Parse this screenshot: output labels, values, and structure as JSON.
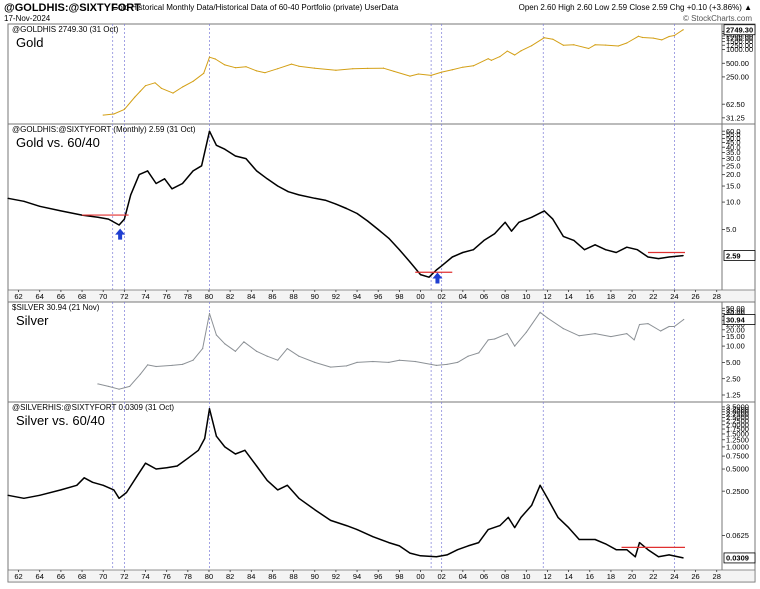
{
  "header": {
    "symbol": "@GOLDHIS:@SIXTYFORT",
    "description": "Gold Historical Monthly Data/Historical Data of 60-40 Portfolio (private) UserData",
    "date": "17-Nov-2024",
    "quote": "Open 2.60  High 2.60  Low 2.59  Close 2.59  Chg +0.10 (+3.86%) ▲",
    "brand": "© StockCharts.com"
  },
  "colors": {
    "gold": "#d4a017",
    "black": "#000000",
    "silver": "#8c9196",
    "guide": "#7b7bd8",
    "resistance": "#e03030",
    "arrow": "#1f3fd1",
    "grid": "#9a9a9a"
  },
  "chart_data": [
    {
      "type": "line",
      "title": "Gold",
      "legend": "@GOLDHIS 2749.30 (31 Oct)",
      "scale": "log",
      "color": "gold",
      "last_label": "2749.30",
      "ticks": [
        "31.25",
        "62.50",
        "250.00",
        "500.00",
        "1000.00",
        "1250.00",
        "1500.00",
        "1750.00",
        "2000.00",
        "2250.00",
        "2500.00"
      ],
      "tick_values": [
        31.25,
        62.5,
        250,
        500,
        1000,
        1250,
        1500,
        1750,
        2000,
        2250,
        2500
      ],
      "ylim": [
        28,
        3000
      ],
      "x": [
        1970.0,
        1971.0,
        1972.0,
        1973.0,
        1973.5,
        1974.0,
        1974.9,
        1975.5,
        1976.6,
        1977.5,
        1978.5,
        1979.5,
        1980.05,
        1980.6,
        1981.5,
        1982.5,
        1983.5,
        1984.5,
        1985.3,
        1986.5,
        1987.8,
        1988.5,
        1990.0,
        1992.0,
        1993.6,
        1995.0,
        1996.5,
        1997.5,
        1999.0,
        1999.8,
        2001.0,
        2002.0,
        2003.0,
        2004.0,
        2005.0,
        2006.4,
        2006.7,
        2007.5,
        2008.2,
        2008.9,
        2009.5,
        2010.5,
        2011.7,
        2012.5,
        2013.5,
        2014.5,
        2015.9,
        2016.5,
        2017.5,
        2018.7,
        2019.5,
        2020.6,
        2021.0,
        2022.0,
        2022.8,
        2023.5,
        2024.0,
        2024.83
      ],
      "values": [
        36,
        38,
        48,
        90,
        120,
        160,
        185,
        140,
        110,
        150,
        200,
        300,
        680,
        620,
        460,
        400,
        420,
        340,
        310,
        380,
        480,
        430,
        390,
        350,
        380,
        385,
        390,
        330,
        260,
        290,
        270,
        320,
        360,
        410,
        440,
        630,
        580,
        700,
        930,
        760,
        940,
        1220,
        1830,
        1700,
        1250,
        1280,
        1060,
        1280,
        1260,
        1200,
        1400,
        1970,
        1850,
        1800,
        1640,
        1950,
        2050,
        2749.3
      ]
    },
    {
      "type": "line",
      "title": "Gold vs. 60/40",
      "legend": "@GOLDHIS:@SIXTYFORT (Monthly) 2.59 (31 Oct)",
      "scale": "log",
      "color": "black",
      "last_label": "2.59",
      "ticks": [
        "5.0",
        "10.0",
        "15.0",
        "20.0",
        "25.0",
        "30.0",
        "35.0",
        "40.0",
        "45.0",
        "50.0",
        "55.0",
        "60.0"
      ],
      "tick_values": [
        5,
        10,
        15,
        20,
        25,
        30,
        35,
        40,
        45,
        50,
        55,
        60
      ],
      "ylim": [
        1.2,
        65
      ],
      "x": [
        1961.0,
        1962.5,
        1964.0,
        1966.0,
        1968.0,
        1969.5,
        1970.5,
        1971.5,
        1972.0,
        1972.6,
        1973.4,
        1974.2,
        1975.0,
        1975.8,
        1976.5,
        1977.5,
        1978.5,
        1979.3,
        1980.05,
        1980.7,
        1981.5,
        1982.5,
        1983.5,
        1984.5,
        1985.5,
        1986.5,
        1987.5,
        1988.5,
        1990.0,
        1991.0,
        1992.0,
        1993.0,
        1994.0,
        1995.0,
        1996.0,
        1997.0,
        1998.0,
        1999.0,
        2000.0,
        2000.8,
        2001.5,
        2002.0,
        2003.0,
        2004.0,
        2005.0,
        2006.0,
        2007.0,
        2008.0,
        2008.6,
        2009.3,
        2010.5,
        2011.7,
        2012.5,
        2013.5,
        2014.5,
        2015.5,
        2016.5,
        2017.5,
        2018.5,
        2019.5,
        2020.5,
        2021.5,
        2022.5,
        2023.5,
        2024.83
      ],
      "values": [
        11,
        10.2,
        9.0,
        8.0,
        7.2,
        6.8,
        6.5,
        5.6,
        6.5,
        12,
        20,
        22,
        16,
        18,
        14,
        16,
        22,
        25,
        60,
        42,
        38,
        32,
        30,
        22,
        18,
        15,
        13,
        12,
        11,
        10.5,
        9.5,
        8.5,
        7.5,
        6.2,
        5.0,
        4.0,
        3.0,
        2.2,
        1.6,
        1.5,
        1.8,
        2.0,
        2.5,
        2.8,
        3.0,
        3.8,
        4.5,
        6.0,
        4.8,
        6.0,
        6.8,
        8.0,
        6.5,
        4.2,
        3.8,
        3.0,
        3.4,
        3.0,
        2.8,
        3.2,
        3.0,
        2.5,
        2.4,
        2.5,
        2.59
      ],
      "markers": [
        {
          "type": "resistance",
          "x1": 1968.0,
          "x2": 1972.4,
          "y": 7.2
        },
        {
          "type": "resistance",
          "x1": 1999.5,
          "x2": 2003.0,
          "y": 1.7
        },
        {
          "type": "resistance",
          "x1": 2021.5,
          "x2": 2025.0,
          "y": 2.8
        },
        {
          "type": "arrow-up",
          "x": 1971.6,
          "y": 4.4
        },
        {
          "type": "arrow-up",
          "x": 2001.6,
          "y": 1.45
        }
      ]
    },
    {
      "type": "line",
      "title": "Silver",
      "legend": "$SILVER 30.94 (21 Nov)",
      "scale": "log",
      "color": "silver",
      "last_label": "30.94",
      "ticks": [
        "1.25",
        "2.50",
        "5.00",
        "10.00",
        "15.00",
        "20.00",
        "25.00",
        "30.00",
        "35.00",
        "40.00",
        "45.00",
        "50.00"
      ],
      "tick_values": [
        1.25,
        2.5,
        5,
        10,
        15,
        20,
        25,
        30,
        35,
        40,
        45,
        50
      ],
      "ylim": [
        1.1,
        55
      ],
      "x": [
        1969.5,
        1970.5,
        1971.5,
        1972.5,
        1973.5,
        1974.2,
        1975.0,
        1976.5,
        1977.5,
        1978.5,
        1979.4,
        1980.05,
        1980.7,
        1981.5,
        1982.5,
        1983.3,
        1984.5,
        1985.5,
        1986.5,
        1987.4,
        1988.5,
        1990.0,
        1991.5,
        1993.0,
        1994.0,
        1995.5,
        1997.0,
        1998.0,
        1999.5,
        2001.5,
        2002.5,
        2003.5,
        2004.5,
        2005.5,
        2006.4,
        2007.0,
        2008.2,
        2008.9,
        2010.0,
        2011.3,
        2012.0,
        2013.5,
        2015.0,
        2016.5,
        2018.0,
        2019.5,
        2020.2,
        2020.7,
        2021.5,
        2022.7,
        2023.5,
        2024.0,
        2024.88
      ],
      "values": [
        2.0,
        1.8,
        1.6,
        1.8,
        3.0,
        4.5,
        4.2,
        4.4,
        4.6,
        5.5,
        9.0,
        40,
        16,
        11,
        8,
        12,
        8,
        6.5,
        5.5,
        9.0,
        6.5,
        5.0,
        4.1,
        4.3,
        5.0,
        5.2,
        5.0,
        5.5,
        5.2,
        4.4,
        4.6,
        5.0,
        6.5,
        7.5,
        13,
        13.5,
        17,
        10,
        18,
        42,
        33,
        21,
        15.5,
        17,
        15,
        17,
        13,
        25,
        26,
        19,
        23,
        23,
        30.94
      ]
    },
    {
      "type": "line",
      "title": "Silver vs. 60/40",
      "legend": "@SILVERHIS:@SIXTYFORT 0.0309 (31 Oct)",
      "scale": "log",
      "color": "black",
      "last_label": "0.0309",
      "ticks": [
        "0.0625",
        "0.2500",
        "0.5000",
        "0.7500",
        "1.0000",
        "1.2500",
        "1.5000",
        "1.7500",
        "2.0000",
        "2.2500",
        "2.5000",
        "2.7500",
        "3.0000",
        "3.2500",
        "3.5000"
      ],
      "tick_values": [
        0.0625,
        0.25,
        0.5,
        0.75,
        1.0,
        1.25,
        1.5,
        1.75,
        2.0,
        2.25,
        2.5,
        2.75,
        3.0,
        3.25,
        3.5
      ],
      "ylim": [
        0.024,
        3.6
      ],
      "x": [
        1961.0,
        1962.5,
        1964.0,
        1966.0,
        1967.5,
        1968.2,
        1969.0,
        1970.0,
        1971.0,
        1971.5,
        1972.2,
        1973.2,
        1974.0,
        1975.0,
        1976.0,
        1977.0,
        1978.0,
        1979.0,
        1979.6,
        1980.05,
        1980.7,
        1981.5,
        1982.5,
        1983.4,
        1984.5,
        1985.5,
        1986.5,
        1987.4,
        1988.5,
        1990.0,
        1991.5,
        1993.0,
        1994.0,
        1995.5,
        1997.0,
        1998.0,
        1999.0,
        2000.0,
        2001.5,
        2002.5,
        2003.5,
        2004.5,
        2005.5,
        2006.4,
        2007.5,
        2008.3,
        2008.9,
        2009.5,
        2010.5,
        2011.3,
        2012.0,
        2013.0,
        2014.0,
        2015.0,
        2016.5,
        2017.5,
        2018.5,
        2019.5,
        2020.3,
        2020.7,
        2021.5,
        2022.5,
        2023.5,
        2024.83
      ],
      "values": [
        0.22,
        0.2,
        0.22,
        0.26,
        0.3,
        0.38,
        0.33,
        0.3,
        0.26,
        0.2,
        0.24,
        0.4,
        0.6,
        0.5,
        0.52,
        0.55,
        0.7,
        0.9,
        1.3,
        3.3,
        1.4,
        1.0,
        0.8,
        0.9,
        0.55,
        0.35,
        0.26,
        0.3,
        0.2,
        0.14,
        0.1,
        0.085,
        0.075,
        0.06,
        0.05,
        0.045,
        0.036,
        0.033,
        0.032,
        0.034,
        0.04,
        0.045,
        0.05,
        0.075,
        0.085,
        0.11,
        0.08,
        0.11,
        0.16,
        0.3,
        0.2,
        0.11,
        0.08,
        0.055,
        0.055,
        0.048,
        0.04,
        0.04,
        0.032,
        0.05,
        0.04,
        0.032,
        0.034,
        0.0309
      ],
      "markers": [
        {
          "type": "resistance",
          "x1": 2019.0,
          "x2": 2025.0,
          "y": 0.043
        }
      ]
    }
  ],
  "x_axis": {
    "xlim": [
      1961,
      2028.5
    ],
    "tick_years": [
      1962,
      1964,
      1966,
      1968,
      1970,
      1972,
      1974,
      1976,
      1978,
      1980,
      1982,
      1984,
      1986,
      1988,
      1990,
      1992,
      1994,
      1996,
      1998,
      2000,
      2002,
      2004,
      2006,
      2008,
      2010,
      2012,
      2014,
      2016,
      2018,
      2020,
      2022,
      2024,
      2026,
      2028
    ],
    "tick_labels": [
      "62",
      "64",
      "66",
      "68",
      "70",
      "72",
      "74",
      "76",
      "78",
      "80",
      "82",
      "84",
      "86",
      "88",
      "90",
      "92",
      "94",
      "96",
      "98",
      "00",
      "02",
      "04",
      "06",
      "08",
      "10",
      "12",
      "14",
      "16",
      "18",
      "20",
      "22",
      "24",
      "26",
      "28"
    ],
    "guide_years": [
      1970.9,
      1972.0,
      1980.05,
      2001.0,
      2002.0,
      2011.6,
      2024.0
    ]
  }
}
